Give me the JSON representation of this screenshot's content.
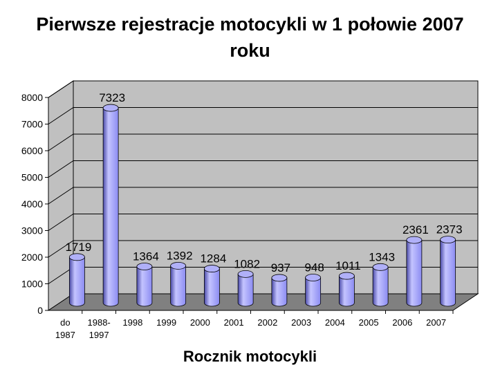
{
  "chart_data": {
    "type": "bar",
    "title_lines": [
      "Pierwsze rejestracje motocykli w 1 połowie 2007",
      "roku"
    ],
    "xlabel": "Rocznik motocykli",
    "ylabel": "",
    "categories": [
      {
        "lines": [
          "do",
          "1987"
        ]
      },
      {
        "lines": [
          "1988-",
          "1997"
        ]
      },
      {
        "lines": [
          "1998"
        ]
      },
      {
        "lines": [
          "1999"
        ]
      },
      {
        "lines": [
          "2000"
        ]
      },
      {
        "lines": [
          "2001"
        ]
      },
      {
        "lines": [
          "2002"
        ]
      },
      {
        "lines": [
          "2003"
        ]
      },
      {
        "lines": [
          "2004"
        ]
      },
      {
        "lines": [
          "2005"
        ]
      },
      {
        "lines": [
          "2006"
        ]
      },
      {
        "lines": [
          "2007"
        ]
      }
    ],
    "values": [
      1719,
      7323,
      1364,
      1392,
      1284,
      1082,
      937,
      948,
      1011,
      1343,
      2361,
      2373
    ],
    "ylim": [
      0,
      8000
    ],
    "yticks": [
      0,
      1000,
      2000,
      3000,
      4000,
      5000,
      6000,
      7000,
      8000
    ],
    "grid": true,
    "legend": "none",
    "colors": {
      "bar": "#8c8cf2",
      "bar_light": "#c4c4ff",
      "bar_dark": "#4a4aa8",
      "bar_top": "#b0b0f8",
      "wall": "#c0c0c0",
      "floor": "#808080",
      "gridline": "#000000"
    }
  }
}
